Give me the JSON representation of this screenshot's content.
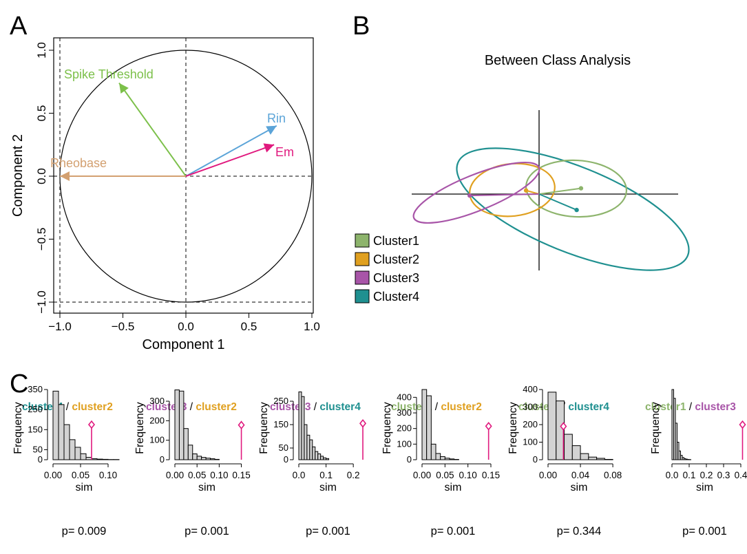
{
  "colors": {
    "green": "#7cc04a",
    "blue": "#5ba4d8",
    "magenta": "#e0197e",
    "tan": "#d3a070",
    "cluster1": "#8db46c",
    "cluster2": "#e0a020",
    "cluster3": "#a855a8",
    "cluster4": "#1f9090",
    "hist_fill": "#d3d3d3",
    "observed": "#e0197e"
  },
  "panel_labels": {
    "a": "A",
    "b": "B",
    "c": "C"
  },
  "chart_data": [
    {
      "type": "vector",
      "id": "correlation-circle",
      "xlabel": "Component 1",
      "ylabel": "Component 2",
      "xlim": [
        -1.1,
        1.0
      ],
      "ylim": [
        -1.1,
        1.05
      ],
      "xticks": [
        -1.0,
        -0.5,
        0.0,
        0.5,
        1.0
      ],
      "xtick_labels": [
        "−1.0",
        "−0.5",
        "0.0",
        "0.5",
        "1.0"
      ],
      "yticks": [
        -1.0,
        -0.5,
        0.0,
        0.5,
        1.0
      ],
      "ytick_labels": [
        "−1.0",
        "−0.5",
        "0.0",
        "0.5",
        "1.0"
      ],
      "vectors": [
        {
          "name": "Spike Threshold",
          "x": -0.53,
          "y": 0.74,
          "color": "#7cc04a"
        },
        {
          "name": "Rin",
          "x": 0.72,
          "y": 0.4,
          "color": "#5ba4d8"
        },
        {
          "name": "Em",
          "x": 0.7,
          "y": 0.25,
          "color": "#e0197e"
        },
        {
          "name": "Rheobase",
          "x": -1.0,
          "y": 0.0,
          "color": "#d3a070"
        }
      ]
    },
    {
      "type": "scatter",
      "id": "between-class-analysis",
      "title": "Between Class Analysis",
      "legend": [
        "Cluster1",
        "Cluster2",
        "Cluster3",
        "Cluster4"
      ],
      "legend_position": "left",
      "clusters": [
        {
          "name": "Cluster1",
          "cx": 0.29,
          "cy": 0.04,
          "color": "#8db46c"
        },
        {
          "name": "Cluster2",
          "cx": -0.09,
          "cy": 0.025,
          "color": "#e0a020"
        },
        {
          "name": "Cluster3",
          "cx": -0.48,
          "cy": -0.01,
          "color": "#a855a8"
        },
        {
          "name": "Cluster4",
          "cx": 0.26,
          "cy": -0.11,
          "color": "#1f9090"
        }
      ]
    },
    {
      "type": "bar",
      "id": "hist-4-2",
      "title_left": "cluster4",
      "title_sep": " / ",
      "title_right": "cluster2",
      "title_left_color": "#1f9090",
      "title_right_color": "#e0a020",
      "xlabel": "sim",
      "ylabel": "Frequency",
      "xlim": [
        0,
        0.125
      ],
      "ylim": [
        0,
        350
      ],
      "xticks": [
        0.0,
        0.05,
        0.1
      ],
      "xtick_labels": [
        "0.00",
        "0.05",
        "0.10"
      ],
      "yticks": [
        0,
        50,
        150,
        250,
        350
      ],
      "ytick_labels": [
        "0",
        "50",
        "150",
        "250",
        "350"
      ],
      "bin_start": 0.0,
      "bin_width": 0.01,
      "values": [
        342,
        275,
        175,
        100,
        62,
        30,
        12,
        5,
        3,
        2,
        1,
        1
      ],
      "observed": 0.07,
      "observed_marker": 175,
      "pvalue": "p= 0.009"
    },
    {
      "type": "bar",
      "id": "hist-3-2",
      "title_left": "cluster3",
      "title_sep": " / ",
      "title_right": "cluster2",
      "title_left_color": "#a855a8",
      "title_right_color": "#e0a020",
      "xlabel": "sim",
      "ylabel": "Frequency",
      "xlim": [
        0,
        0.16
      ],
      "ylim": [
        0,
        360
      ],
      "xticks": [
        0.0,
        0.05,
        0.1,
        0.15
      ],
      "xtick_labels": [
        "0.00",
        "0.05",
        "0.10",
        "0.15"
      ],
      "yticks": [
        0,
        100,
        200,
        300
      ],
      "ytick_labels": [
        "0",
        "100",
        "200",
        "300"
      ],
      "bin_start": 0.0,
      "bin_width": 0.01,
      "values": [
        358,
        352,
        160,
        75,
        30,
        18,
        12,
        8,
        5,
        2
      ],
      "observed": 0.15,
      "observed_marker": 178,
      "pvalue": "p= 0.001"
    },
    {
      "type": "bar",
      "id": "hist-3-4",
      "title_left": "cluster3",
      "title_sep": " / ",
      "title_right": "cluster4",
      "title_left_color": "#a855a8",
      "title_right_color": "#1f9090",
      "xlabel": "sim",
      "ylabel": "Frequency",
      "xlim": [
        0,
        0.24
      ],
      "ylim": [
        0,
        300
      ],
      "xticks": [
        0.0,
        0.1,
        0.2
      ],
      "xtick_labels": [
        "0.0",
        "0.1",
        "0.2"
      ],
      "yticks": [
        0,
        50,
        150,
        250
      ],
      "ytick_labels": [
        "0",
        "50",
        "150",
        "250"
      ],
      "bin_start": 0.0,
      "bin_width": 0.01,
      "values": [
        290,
        270,
        150,
        105,
        85,
        55,
        35,
        25,
        15,
        8,
        5
      ],
      "observed": 0.235,
      "observed_marker": 155,
      "pvalue": "p= 0.001"
    },
    {
      "type": "bar",
      "id": "hist-1-2",
      "title_left": "cluster1",
      "title_sep": " / ",
      "title_right": "cluster2",
      "title_left_color": "#8db46c",
      "title_right_color": "#e0a020",
      "xlabel": "sim",
      "ylabel": "Frequency",
      "xlim": [
        0,
        0.15
      ],
      "ylim": [
        0,
        450
      ],
      "xticks": [
        0.0,
        0.05,
        0.1,
        0.15
      ],
      "xtick_labels": [
        "0.00",
        "0.05",
        "0.10",
        "0.15"
      ],
      "yticks": [
        0,
        100,
        200,
        300,
        400
      ],
      "ytick_labels": [
        "0",
        "100",
        "200",
        "300",
        "400"
      ],
      "bin_start": 0.0,
      "bin_width": 0.01,
      "values": [
        450,
        410,
        100,
        40,
        20,
        10,
        5,
        2
      ],
      "observed": 0.145,
      "observed_marker": 215,
      "pvalue": "p= 0.001"
    },
    {
      "type": "bar",
      "id": "hist-1-4",
      "title_left": "cluster1",
      "title_sep": " / ",
      "title_right": "cluster4",
      "title_left_color": "#8db46c",
      "title_right_color": "#1f9090",
      "xlabel": "sim",
      "ylabel": "Frequency",
      "xlim": [
        0,
        0.085
      ],
      "ylim": [
        0,
        400
      ],
      "xticks": [
        0.0,
        0.04,
        0.08
      ],
      "xtick_labels": [
        "0.00",
        "0.04",
        "0.08"
      ],
      "yticks": [
        0,
        100,
        200,
        300,
        400
      ],
      "ytick_labels": [
        "0",
        "100",
        "200",
        "300",
        "400"
      ],
      "bin_start": 0.0,
      "bin_width": 0.01,
      "values": [
        385,
        335,
        145,
        80,
        35,
        15,
        8,
        2
      ],
      "observed": 0.019,
      "observed_marker": 190,
      "pvalue": "p= 0.344"
    },
    {
      "type": "bar",
      "id": "hist-1-3",
      "title_left": "cluster1",
      "title_sep": " / ",
      "title_right": "cluster3",
      "title_left_color": "#8db46c",
      "title_right_color": "#a855a8",
      "xlabel": "sim",
      "ylabel": "Frequency",
      "xlim": [
        0,
        0.42
      ],
      "ylim": [
        0,
        480
      ],
      "xticks": [
        0.0,
        0.1,
        0.2,
        0.3,
        0.4
      ],
      "xtick_labels": [
        "0.0",
        "0.1",
        "0.2",
        "0.3",
        "0.4"
      ],
      "yticks": [],
      "ytick_labels": [],
      "bin_start": 0.0,
      "bin_width": 0.01,
      "values": [
        480,
        420,
        250,
        120,
        60,
        30,
        15,
        8,
        4,
        2,
        1
      ],
      "observed": 0.41,
      "observed_marker": 240,
      "pvalue": "p= 0.001"
    }
  ]
}
